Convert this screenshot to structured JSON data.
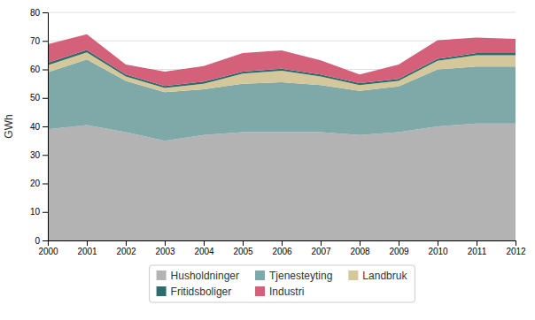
{
  "chart_data": {
    "type": "area",
    "stacked": true,
    "x": [
      2000,
      2001,
      2002,
      2003,
      2004,
      2005,
      2006,
      2007,
      2008,
      2009,
      2010,
      2011,
      2012
    ],
    "xlim": [
      2000,
      2012
    ],
    "xticks": [
      2000,
      2001,
      2002,
      2003,
      2004,
      2005,
      2006,
      2007,
      2008,
      2009,
      2010,
      2011,
      2012
    ],
    "ylabel": "GWh",
    "ylim": [
      0,
      80
    ],
    "yticks": [
      0,
      10,
      20,
      30,
      40,
      50,
      60,
      70,
      80
    ],
    "grid": true,
    "legend": "bottom",
    "series": [
      {
        "name": "Husholdninger",
        "color": "#b3b3b3",
        "values": [
          39,
          40.5,
          38,
          35,
          37,
          38,
          38,
          38,
          37,
          38,
          40,
          41,
          41
        ]
      },
      {
        "name": "Tjenesteyting",
        "color": "#7fa8a8",
        "values": [
          20,
          23,
          18,
          17,
          16,
          17,
          17.5,
          16.5,
          15.5,
          16,
          20,
          20,
          20
        ]
      },
      {
        "name": "Landbruk",
        "color": "#d4c89a",
        "values": [
          2.5,
          2.5,
          1.5,
          1.5,
          2,
          3.5,
          4,
          3,
          2,
          2,
          3,
          4,
          4
        ]
      },
      {
        "name": "Fritidsboliger",
        "color": "#2e6b6b",
        "values": [
          0.8,
          0.8,
          0.7,
          0.7,
          0.7,
          0.7,
          0.7,
          0.7,
          0.7,
          0.7,
          0.7,
          0.7,
          0.7
        ]
      },
      {
        "name": "Industri",
        "color": "#d4607a",
        "values": [
          6.5,
          5.5,
          3.5,
          5,
          5.5,
          6.5,
          6.5,
          5,
          3,
          5,
          6.5,
          5.5,
          5
        ]
      }
    ]
  }
}
